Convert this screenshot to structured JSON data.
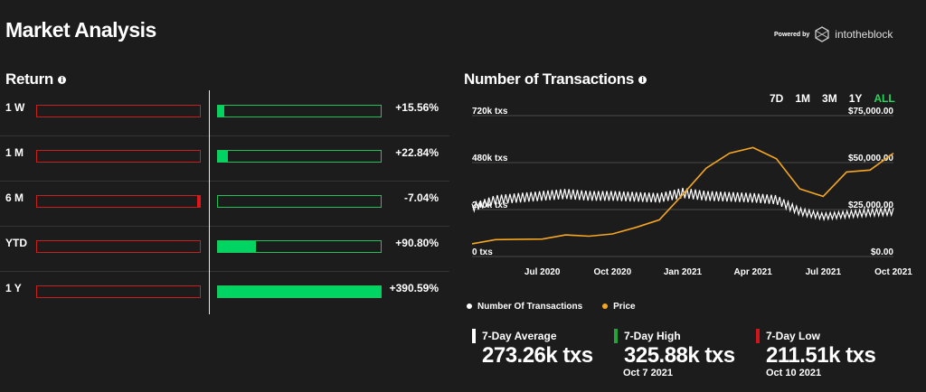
{
  "page": {
    "title": "Market Analysis"
  },
  "powered": {
    "prefix": "Powered by",
    "brand": "intotheblock"
  },
  "returns": {
    "title": "Return",
    "rows": [
      {
        "label": "1 W",
        "value": "+15.56%",
        "pct": 15.56
      },
      {
        "label": "1 M",
        "value": "+22.84%",
        "pct": 22.84
      },
      {
        "label": "6 M",
        "value": "-7.04%",
        "pct": -7.04
      },
      {
        "label": "YTD",
        "value": "+90.80%",
        "pct": 90.8
      },
      {
        "label": "1 Y",
        "value": "+390.59%",
        "pct": 390.59
      }
    ]
  },
  "transactions": {
    "title": "Number of Transactions",
    "ranges": [
      "7D",
      "1M",
      "3M",
      "1Y",
      "ALL"
    ],
    "active_range": "ALL",
    "legend": [
      {
        "label": "Number Of Transactions",
        "color": "#ffffff"
      },
      {
        "label": "Price",
        "color": "#f5a623"
      }
    ],
    "stats": [
      {
        "label": "7-Day Average",
        "value": "273.26k txs",
        "date": "",
        "color": "#ffffff"
      },
      {
        "label": "7-Day High",
        "value": "325.88k txs",
        "date": "Oct 7 2021",
        "color": "#23a43a"
      },
      {
        "label": "7-Day Low",
        "value": "211.51k txs",
        "date": "Oct 10 2021",
        "color": "#d0161b"
      }
    ]
  },
  "chart_data": {
    "type": "line",
    "y_left_ticks": [
      "0 txs",
      "240k txs",
      "480k txs",
      "720k txs"
    ],
    "y_left_range": [
      0,
      720000
    ],
    "y_right_ticks": [
      "$0.00",
      "$25,000.00",
      "$50,000.00",
      "$75,000.00"
    ],
    "y_right_range": [
      0,
      75000
    ],
    "x_ticks": [
      "Jul 2020",
      "Oct 2020",
      "Jan 2021",
      "Apr 2021",
      "Jul 2021",
      "Oct 2021"
    ],
    "grid": true,
    "series": [
      {
        "name": "Number Of Transactions",
        "axis": "left",
        "color": "#ffffff",
        "x": [
          "2020-04",
          "2020-05",
          "2020-06",
          "2020-07",
          "2020-08",
          "2020-09",
          "2020-10",
          "2020-11",
          "2020-12",
          "2021-01",
          "2021-02",
          "2021-03",
          "2021-04",
          "2021-05",
          "2021-06",
          "2021-07",
          "2021-08",
          "2021-09",
          "2021-10"
        ],
        "values": [
          250000,
          290000,
          300000,
          310000,
          320000,
          310000,
          310000,
          305000,
          300000,
          325000,
          310000,
          305000,
          300000,
          290000,
          230000,
          205000,
          215000,
          225000,
          230000
        ]
      },
      {
        "name": "Price",
        "axis": "right",
        "color": "#f5a623",
        "x": [
          "2020-04",
          "2020-05",
          "2020-06",
          "2020-07",
          "2020-08",
          "2020-09",
          "2020-10",
          "2020-11",
          "2020-12",
          "2021-01",
          "2021-02",
          "2021-03",
          "2021-04",
          "2021-05",
          "2021-06",
          "2021-07",
          "2021-08",
          "2021-09",
          "2021-10"
        ],
        "values": [
          6800,
          9000,
          9200,
          9300,
          11500,
          10800,
          12000,
          15500,
          19500,
          33000,
          47000,
          55000,
          58000,
          52000,
          36000,
          32000,
          45000,
          46000,
          55000
        ]
      }
    ]
  }
}
